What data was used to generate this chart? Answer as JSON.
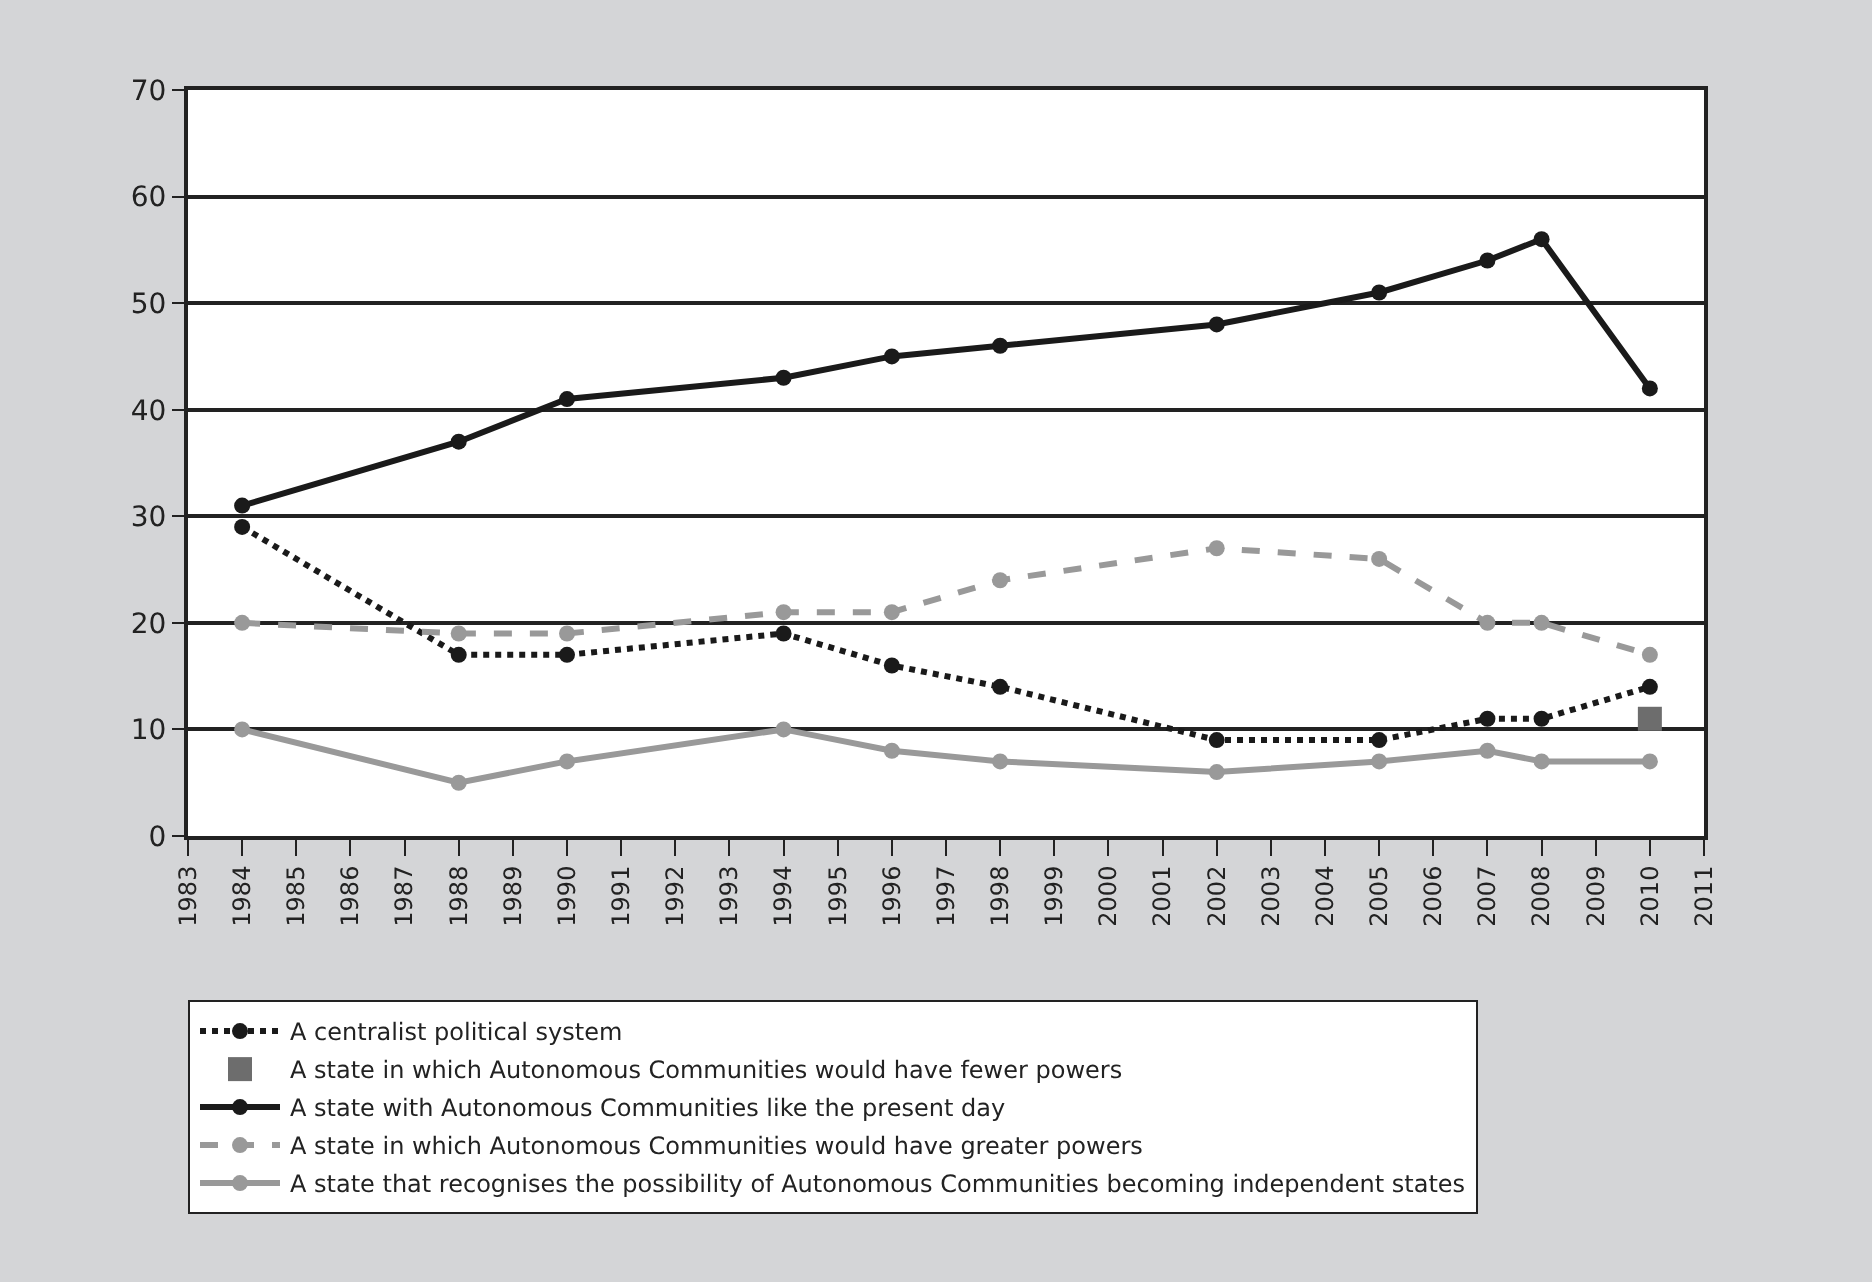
{
  "chart_data": {
    "type": "line",
    "x": [
      1984,
      1988,
      1990,
      1994,
      1996,
      1998,
      2002,
      2005,
      2007,
      2008,
      2010
    ],
    "series": [
      {
        "name": "A centralist political system",
        "color": "#1a1a1a",
        "line_style": "dotted",
        "marker": "circle",
        "values": [
          29,
          17,
          17,
          19,
          16,
          14,
          9,
          9,
          11,
          11,
          14
        ]
      },
      {
        "name": "A state in which Autonomous Communities would have fewer powers",
        "type": "scatter",
        "color": "#6d6d6d",
        "marker": "square",
        "values": [
          null,
          null,
          null,
          null,
          null,
          null,
          null,
          null,
          null,
          null,
          11
        ]
      },
      {
        "name": "A state with Autonomous Communities like the present day",
        "color": "#1a1a1a",
        "line_style": "solid",
        "marker": "circle",
        "values": [
          31,
          37,
          41,
          43,
          45,
          46,
          48,
          51,
          54,
          56,
          42
        ]
      },
      {
        "name": "A state in which Autonomous Communities would have greater powers",
        "color": "#999999",
        "line_style": "dashed",
        "marker": "circle",
        "values": [
          20,
          19,
          19,
          21,
          21,
          24,
          27,
          26,
          20,
          20,
          17
        ]
      },
      {
        "name": "A state that recognises the possibility of Autonomous Communities becoming independent states",
        "color": "#999999",
        "line_style": "solid",
        "marker": "circle",
        "values": [
          10,
          5,
          7,
          10,
          8,
          7,
          6,
          7,
          8,
          7,
          7
        ]
      }
    ],
    "xlim": [
      1983,
      2011
    ],
    "xticks": [
      1983,
      1984,
      1985,
      1986,
      1987,
      1988,
      1989,
      1990,
      1991,
      1992,
      1993,
      1994,
      1995,
      1996,
      1997,
      1998,
      1999,
      2000,
      2001,
      2002,
      2003,
      2004,
      2005,
      2006,
      2007,
      2008,
      2009,
      2010,
      2011
    ],
    "ylim": [
      0,
      70
    ],
    "yticks": [
      0,
      10,
      20,
      30,
      40,
      50,
      60,
      70
    ],
    "grid": "y",
    "legend": "bottom"
  }
}
